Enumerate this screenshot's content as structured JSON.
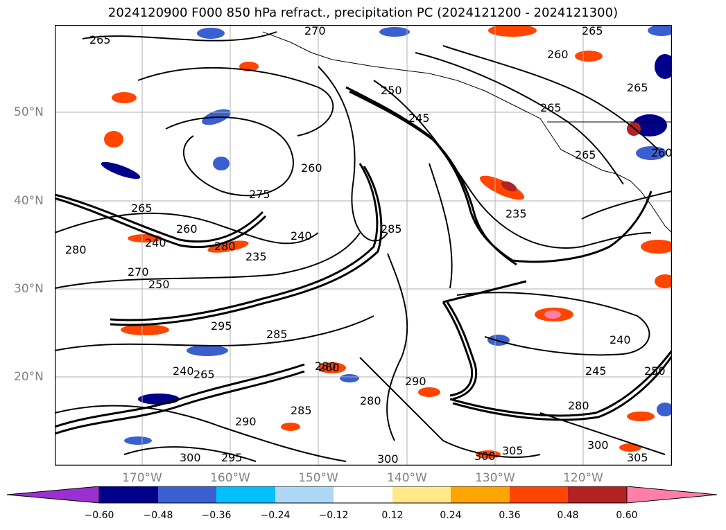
{
  "title": "2024120900 F000 850 hPa refract., precipitation PC (2024121200 - 2024121300)",
  "lat_labels": [
    "50°N",
    "40°N",
    "30°N",
    "20°N"
  ],
  "lon_labels": [
    "170°W",
    "160°W",
    "150°W",
    "140°W",
    "130°W",
    "120°W"
  ],
  "colorbar": {
    "ticks": [
      "−0.60",
      "−0.48",
      "−0.36",
      "−0.24",
      "−0.12",
      "0.12",
      "0.24",
      "0.36",
      "0.48",
      "0.60"
    ],
    "colors": [
      "#9b30d0",
      "#00008b",
      "#3a5fd0",
      "#00bfff",
      "#add8f5",
      "#ffffff",
      "#ffe98a",
      "#ffa500",
      "#ff4500",
      "#b22222",
      "#ff7fa8"
    ]
  },
  "contour_labels": [
    "265",
    "270",
    "250",
    "245",
    "265",
    "260",
    "265",
    "265",
    "260",
    "265",
    "260",
    "275",
    "265",
    "240",
    "235",
    "285",
    "280",
    "240",
    "235",
    "260",
    "240",
    "280",
    "270",
    "250",
    "295",
    "285",
    "280",
    "240",
    "245",
    "250",
    "260",
    "265",
    "290",
    "280",
    "300",
    "295",
    "290",
    "285",
    "300",
    "300",
    "305",
    "300",
    "305",
    "280"
  ]
}
